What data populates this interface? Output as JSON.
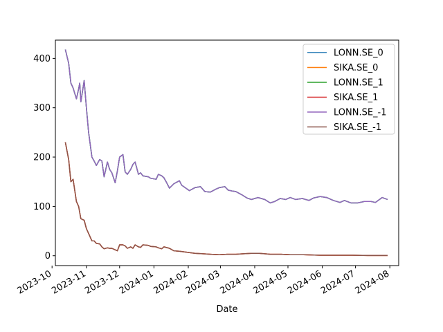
{
  "chart_data": {
    "type": "line",
    "title": "",
    "xlabel": "Date",
    "ylabel": "",
    "x_range": [
      "2023-10-04",
      "2024-08-09"
    ],
    "ylim": [
      -20,
      437
    ],
    "grid": false,
    "legend_position": "top-right",
    "x_ticks": [
      {
        "date": "2023-10-01",
        "label": "2023-10"
      },
      {
        "date": "2023-11-01",
        "label": "2023-11"
      },
      {
        "date": "2023-12-01",
        "label": "2023-12"
      },
      {
        "date": "2024-01-01",
        "label": "2024-01"
      },
      {
        "date": "2024-02-01",
        "label": "2024-02"
      },
      {
        "date": "2024-03-01",
        "label": "2024-03"
      },
      {
        "date": "2024-04-01",
        "label": "2024-04"
      },
      {
        "date": "2024-05-01",
        "label": "2024-05"
      },
      {
        "date": "2024-06-01",
        "label": "2024-06"
      },
      {
        "date": "2024-07-01",
        "label": "2024-07"
      },
      {
        "date": "2024-08-01",
        "label": "2024-08"
      }
    ],
    "y_ticks": [
      0,
      100,
      200,
      300,
      400
    ],
    "series": [
      {
        "name": "LONN.SE_0",
        "color": "#1f77b4",
        "group": "A"
      },
      {
        "name": "SIKA.SE_0",
        "color": "#ff7f0e",
        "group": "B"
      },
      {
        "name": "LONN.SE_1",
        "color": "#2ca02c",
        "group": "A"
      },
      {
        "name": "SIKA.SE_1",
        "color": "#d62728",
        "group": "B"
      },
      {
        "name": "LONN.SE_-1",
        "color": "#9467bd",
        "group": "A"
      },
      {
        "name": "SIKA.SE_-1",
        "color": "#8c564b",
        "group": "B"
      }
    ],
    "groups": {
      "A": {
        "x": [
          "2023-10-13",
          "2023-10-16",
          "2023-10-18",
          "2023-10-20",
          "2023-10-23",
          "2023-10-25",
          "2023-10-26",
          "2023-10-27",
          "2023-10-30",
          "2023-11-01",
          "2023-11-03",
          "2023-11-06",
          "2023-11-08",
          "2023-11-10",
          "2023-11-13",
          "2023-11-15",
          "2023-11-17",
          "2023-11-20",
          "2023-11-22",
          "2023-11-24",
          "2023-11-27",
          "2023-11-29",
          "2023-12-01",
          "2023-12-04",
          "2023-12-06",
          "2023-12-08",
          "2023-12-11",
          "2023-12-13",
          "2023-12-15",
          "2023-12-18",
          "2023-12-20",
          "2023-12-22",
          "2023-12-27",
          "2023-12-29",
          "2024-01-03",
          "2024-01-05",
          "2024-01-08",
          "2024-01-10",
          "2024-01-12",
          "2024-01-15",
          "2024-01-19",
          "2024-01-24",
          "2024-01-26",
          "2024-01-31",
          "2024-02-02",
          "2024-02-07",
          "2024-02-12",
          "2024-02-16",
          "2024-02-21",
          "2024-02-26",
          "2024-02-29",
          "2024-03-05",
          "2024-03-08",
          "2024-03-12",
          "2024-03-15",
          "2024-03-20",
          "2024-03-25",
          "2024-03-29",
          "2024-04-04",
          "2024-04-10",
          "2024-04-15",
          "2024-04-19",
          "2024-04-24",
          "2024-04-29",
          "2024-05-03",
          "2024-05-08",
          "2024-05-14",
          "2024-05-20",
          "2024-05-24",
          "2024-05-30",
          "2024-06-05",
          "2024-06-11",
          "2024-06-17",
          "2024-06-21",
          "2024-06-27",
          "2024-07-03",
          "2024-07-09",
          "2024-07-15",
          "2024-07-19",
          "2024-07-25",
          "2024-07-30"
        ],
        "y": [
          418,
          390,
          350,
          340,
          318,
          338,
          350,
          312,
          355,
          300,
          250,
          200,
          192,
          183,
          195,
          192,
          160,
          190,
          175,
          168,
          148,
          172,
          200,
          205,
          170,
          165,
          175,
          185,
          190,
          165,
          168,
          162,
          160,
          157,
          155,
          165,
          162,
          158,
          150,
          137,
          146,
          152,
          143,
          135,
          132,
          138,
          140,
          130,
          129,
          135,
          138,
          140,
          133,
          131,
          130,
          124,
          117,
          114,
          118,
          114,
          107,
          110,
          116,
          114,
          118,
          114,
          116,
          112,
          117,
          120,
          118,
          112,
          108,
          112,
          107,
          107,
          110,
          110,
          108,
          118,
          114
        ]
      },
      "B": {
        "x": [
          "2023-10-13",
          "2023-10-16",
          "2023-10-18",
          "2023-10-20",
          "2023-10-23",
          "2023-10-25",
          "2023-10-27",
          "2023-10-30",
          "2023-11-01",
          "2023-11-03",
          "2023-11-06",
          "2023-11-08",
          "2023-11-10",
          "2023-11-13",
          "2023-11-15",
          "2023-11-17",
          "2023-11-20",
          "2023-11-22",
          "2023-11-24",
          "2023-11-27",
          "2023-11-29",
          "2023-12-01",
          "2023-12-04",
          "2023-12-06",
          "2023-12-08",
          "2023-12-11",
          "2023-12-13",
          "2023-12-15",
          "2023-12-18",
          "2023-12-20",
          "2023-12-22",
          "2023-12-27",
          "2023-12-29",
          "2024-01-03",
          "2024-01-05",
          "2024-01-08",
          "2024-01-10",
          "2024-01-15",
          "2024-01-19",
          "2024-01-24",
          "2024-01-31",
          "2024-02-07",
          "2024-02-14",
          "2024-02-21",
          "2024-02-29",
          "2024-03-07",
          "2024-03-15",
          "2024-03-22",
          "2024-03-29",
          "2024-04-05",
          "2024-04-15",
          "2024-04-25",
          "2024-05-03",
          "2024-05-15",
          "2024-05-30",
          "2024-06-14",
          "2024-06-28",
          "2024-07-12",
          "2024-07-30"
        ],
        "y": [
          230,
          195,
          150,
          155,
          110,
          100,
          75,
          72,
          55,
          45,
          30,
          30,
          25,
          24,
          18,
          14,
          16,
          15,
          15,
          12,
          10,
          22,
          22,
          20,
          15,
          18,
          15,
          22,
          18,
          17,
          22,
          21,
          19,
          18,
          16,
          14,
          18,
          15,
          10,
          9,
          7,
          5,
          4,
          3,
          2,
          3,
          3,
          4,
          5,
          5,
          3,
          3,
          2,
          2,
          1,
          1,
          1,
          0.5,
          0.5
        ]
      }
    }
  }
}
